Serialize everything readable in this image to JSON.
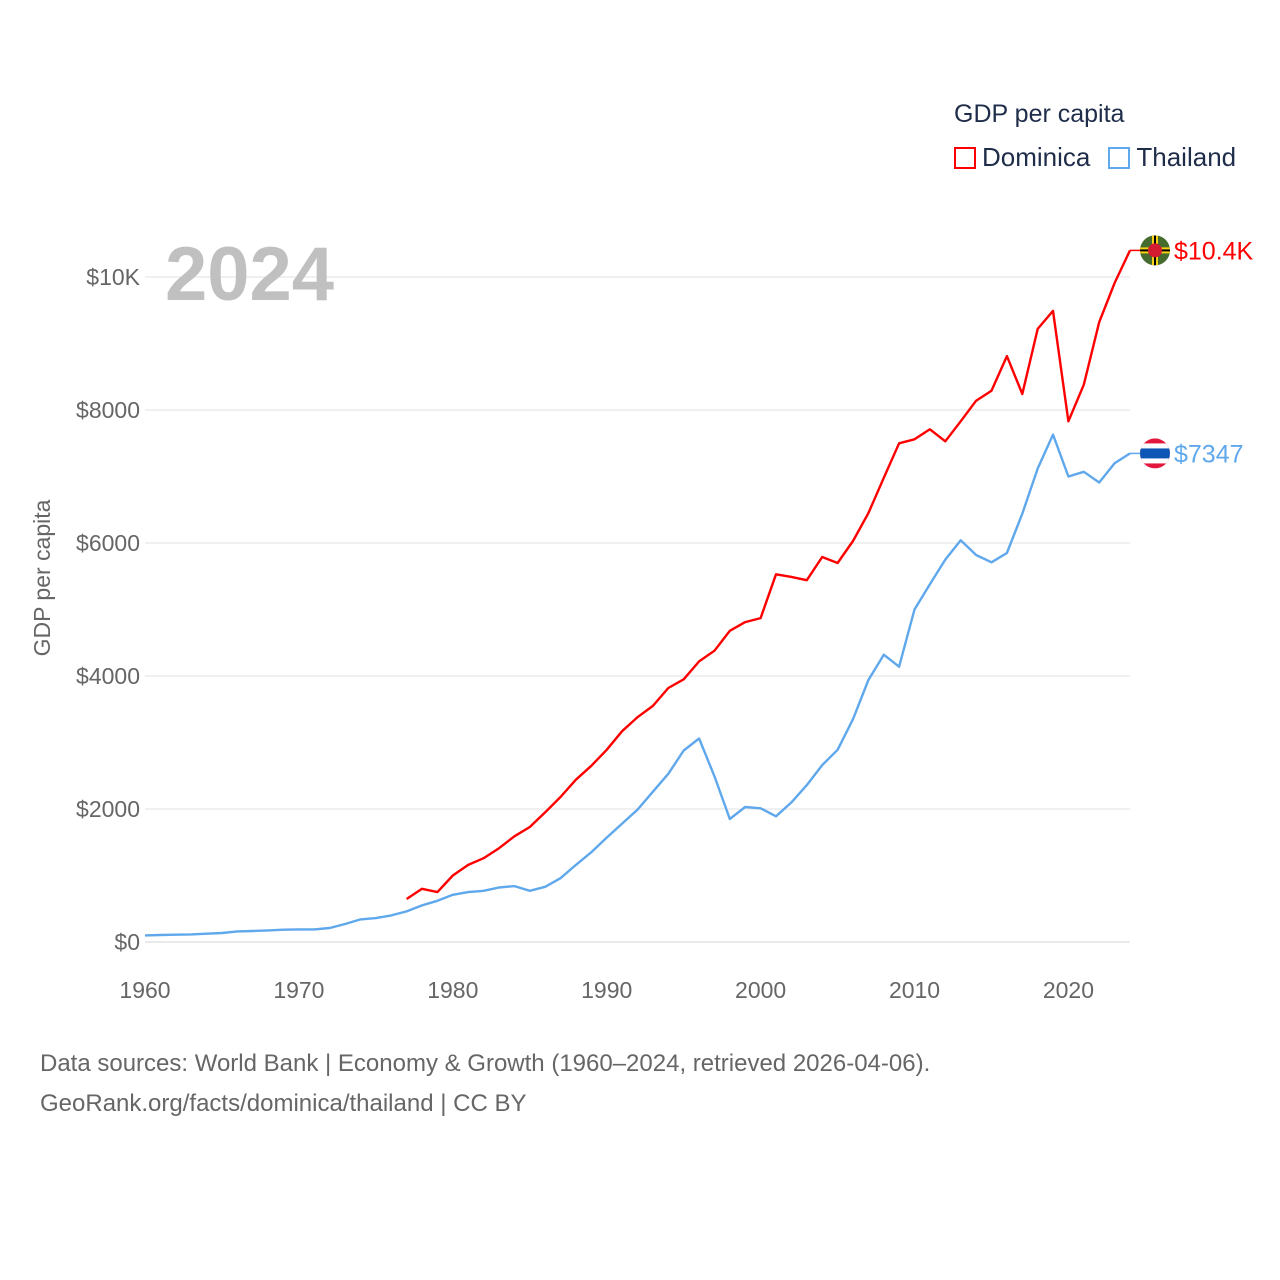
{
  "chart_data": {
    "type": "line",
    "title": "GDP per capita",
    "year_label": "2024",
    "xlabel": "",
    "ylabel": "GDP per capita",
    "xlim": [
      1960,
      2024
    ],
    "ylim": [
      0,
      10000
    ],
    "x_ticks": [
      "1960",
      "1970",
      "1980",
      "1990",
      "2000",
      "2010",
      "2020"
    ],
    "y_ticks": [
      {
        "value": 0,
        "label": "$0"
      },
      {
        "value": 2000,
        "label": "$2000"
      },
      {
        "value": 4000,
        "label": "$4000"
      },
      {
        "value": 6000,
        "label": "$6000"
      },
      {
        "value": 8000,
        "label": "$8000"
      },
      {
        "value": 10000,
        "label": "$10K"
      }
    ],
    "grid": true,
    "legend_placement": "top-right",
    "series": [
      {
        "name": "Dominica",
        "color": "#ff0000",
        "end_label": "$10.4K",
        "flag": "dominica-flag",
        "start_year": 1977,
        "values": [
          647,
          800,
          750,
          1000,
          1160,
          1260,
          1410,
          1590,
          1730,
          1950,
          2180,
          2440,
          2650,
          2890,
          3170,
          3380,
          3550,
          3820,
          3950,
          4220,
          4380,
          4680,
          4810,
          4870,
          5530,
          5490,
          5440,
          5790,
          5700,
          6030,
          6450,
          6980,
          7500,
          7560,
          7710,
          7530,
          7830,
          8140,
          8290,
          8810,
          8240,
          9220,
          9490,
          7830,
          8380,
          9320,
          9910,
          10400
        ]
      },
      {
        "name": "Thailand",
        "color": "#5fa8ec",
        "end_label": "$7347",
        "flag": "thailand-flag",
        "start_year": 1960,
        "values": [
          100,
          105,
          110,
          115,
          125,
          135,
          160,
          165,
          175,
          185,
          190,
          190,
          210,
          270,
          340,
          360,
          400,
          460,
          550,
          620,
          710,
          750,
          770,
          820,
          840,
          770,
          830,
          960,
          1160,
          1350,
          1570,
          1780,
          1990,
          2260,
          2530,
          2880,
          3060,
          2490,
          1850,
          2030,
          2010,
          1890,
          2100,
          2360,
          2660,
          2890,
          3350,
          3940,
          4320,
          4140,
          5000,
          5380,
          5750,
          6040,
          5820,
          5710,
          5850,
          6440,
          7120,
          7630,
          7000,
          7070,
          6910,
          7200,
          7347
        ]
      }
    ]
  },
  "footer": {
    "line1": "Data sources: World Bank | Economy & Growth (1960–2024, retrieved 2026-04-06).",
    "line2": "GeoRank.org/facts/dominica/thailand | CC BY"
  }
}
